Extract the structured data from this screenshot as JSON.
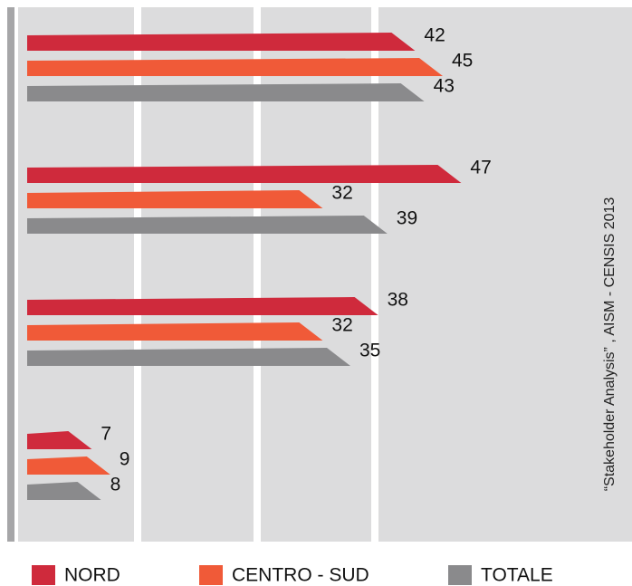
{
  "chart_data": {
    "type": "hbar",
    "categories": [
      null,
      null,
      null,
      null
    ],
    "series": [
      {
        "name": "NORD",
        "color": "#cf2a3c",
        "values": [
          42,
          47,
          38,
          7
        ]
      },
      {
        "name": "CENTRO - SUD",
        "color": "#f05a38",
        "values": [
          45,
          32,
          32,
          9
        ]
      },
      {
        "name": "TOTALE",
        "color": "#8a8a8c",
        "values": [
          43,
          39,
          35,
          8
        ]
      }
    ],
    "xlim": [
      0,
      50
    ],
    "annotation": "“Stakeholder Analysis” , AISM - CENSIS 2013"
  }
}
